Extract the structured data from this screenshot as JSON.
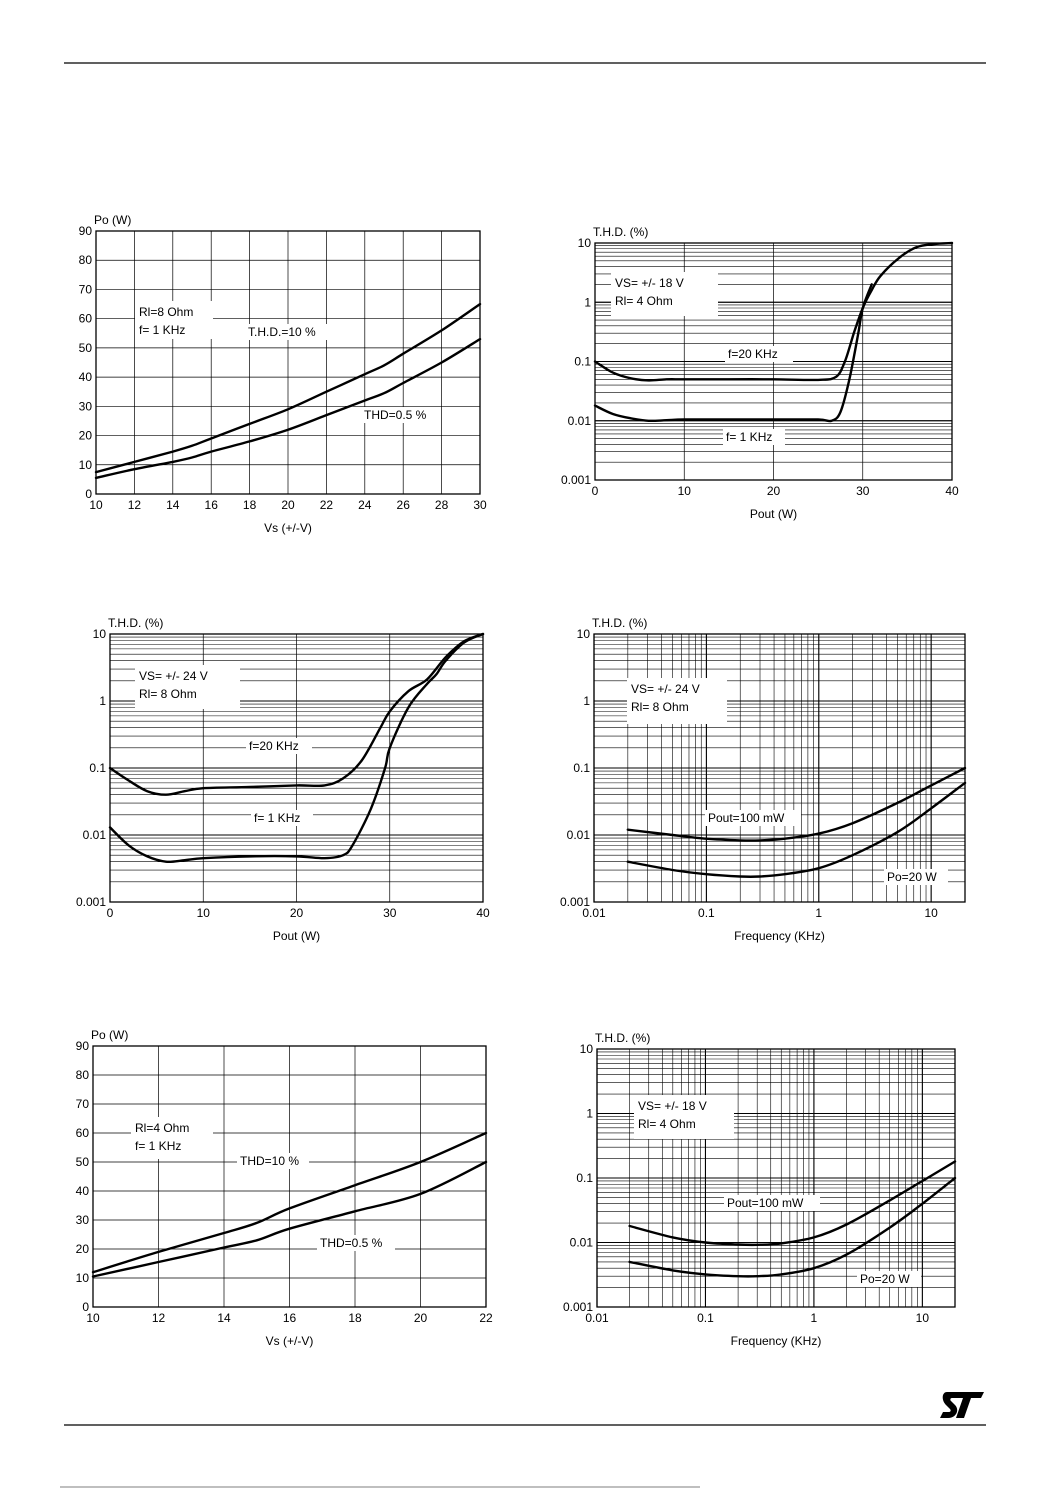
{
  "logo": {
    "text": "ST",
    "icon": "st-logo-icon"
  },
  "colors": {
    "ink": "#000000",
    "paper": "#ffffff"
  },
  "chart_data": [
    {
      "type": "line",
      "title": "",
      "ylabel": "Po (W)",
      "xlabel": "Vs (+/-V)",
      "xscale": "linear",
      "yscale": "linear",
      "xlim": [
        10,
        30
      ],
      "ylim": [
        0,
        90
      ],
      "xticks": [
        10,
        12,
        14,
        16,
        18,
        20,
        22,
        24,
        26,
        28,
        30
      ],
      "yticks": [
        0,
        10,
        20,
        30,
        40,
        50,
        60,
        70,
        80,
        90
      ],
      "grid": true,
      "annotations": [
        "Rl=8 Ohm",
        "f= 1 KHz"
      ],
      "series": [
        {
          "name": "T.H.D.=10 %",
          "x": [
            10,
            12,
            14,
            15,
            16,
            18,
            20,
            22,
            24,
            25,
            26,
            28,
            30
          ],
          "y": [
            7.5,
            11,
            14.5,
            16.5,
            19,
            24,
            29,
            35,
            41,
            44,
            48,
            56,
            65
          ]
        },
        {
          "name": "THD=0.5 %",
          "x": [
            10,
            12,
            14,
            15,
            16,
            18,
            20,
            22,
            24,
            25,
            26,
            28,
            30
          ],
          "y": [
            5.5,
            8.5,
            11,
            12.5,
            14.5,
            18,
            22,
            27,
            32,
            34.5,
            38,
            45,
            53
          ]
        }
      ]
    },
    {
      "type": "line",
      "title": "",
      "ylabel": "T.H.D.  (%)",
      "xlabel": "Pout  (W)",
      "xscale": "linear",
      "yscale": "log",
      "xlim": [
        0,
        40
      ],
      "ylim": [
        0.001,
        10
      ],
      "xticks": [
        0,
        10,
        20,
        30,
        40
      ],
      "yticks": [
        0.001,
        0.01,
        0.1,
        1,
        10
      ],
      "ytick_labels": [
        "0.001",
        "0.01",
        "0.1",
        "1",
        "10"
      ],
      "grid": true,
      "annotations": [
        "VS=  +/- 18 V",
        "Rl=  4 Ohm"
      ],
      "series": [
        {
          "name": "f=20 KHz",
          "x": [
            0,
            2,
            4,
            6,
            8,
            10,
            15,
            20,
            25,
            27,
            28,
            29,
            30,
            31,
            32,
            34,
            36,
            38,
            40
          ],
          "y": [
            0.1,
            0.065,
            0.052,
            0.048,
            0.05,
            0.05,
            0.05,
            0.05,
            0.049,
            0.055,
            0.1,
            0.3,
            0.8,
            1.6,
            2.8,
            5.5,
            8.5,
            9.6,
            10
          ]
        },
        {
          "name": "f= 1 KHz",
          "x": [
            0,
            2,
            4,
            6,
            8,
            10,
            15,
            20,
            25,
            26.5,
            27.5,
            28.5,
            29.5,
            30,
            31
          ],
          "y": [
            0.018,
            0.013,
            0.011,
            0.01,
            0.0102,
            0.0105,
            0.0105,
            0.0105,
            0.0105,
            0.01,
            0.014,
            0.05,
            0.3,
            0.8,
            2
          ]
        }
      ]
    },
    {
      "type": "line",
      "title": "",
      "ylabel": "T.H.D.  (%)",
      "xlabel": "Pout  (W)",
      "xscale": "linear",
      "yscale": "log",
      "xlim": [
        0,
        40
      ],
      "ylim": [
        0.001,
        10
      ],
      "xticks": [
        0,
        10,
        20,
        30,
        40
      ],
      "yticks": [
        0.001,
        0.01,
        0.1,
        1,
        10
      ],
      "ytick_labels": [
        "0.001",
        "0.01",
        "0.1",
        "1",
        "10"
      ],
      "grid": true,
      "annotations": [
        "VS=  +/- 24 V",
        "Rl=  8 Ohm"
      ],
      "series": [
        {
          "name": "f=20 KHz",
          "x": [
            0,
            2,
            4,
            6,
            8,
            10,
            15,
            20,
            23,
            25,
            27,
            29,
            30,
            32,
            34,
            36,
            38,
            40
          ],
          "y": [
            0.1,
            0.065,
            0.045,
            0.04,
            0.045,
            0.05,
            0.052,
            0.055,
            0.055,
            0.07,
            0.13,
            0.4,
            0.7,
            1.4,
            2.1,
            4.5,
            7.8,
            10
          ]
        },
        {
          "name": "f= 1 KHz",
          "x": [
            0,
            2,
            4,
            6,
            8,
            10,
            15,
            20,
            23,
            25,
            26,
            28,
            29.5,
            30,
            32,
            34,
            35,
            36,
            38,
            40
          ],
          "y": [
            0.013,
            0.007,
            0.0048,
            0.004,
            0.0042,
            0.0045,
            0.0048,
            0.0048,
            0.0045,
            0.005,
            0.007,
            0.025,
            0.1,
            0.2,
            0.8,
            1.8,
            2.5,
            4,
            7.5,
            10
          ]
        }
      ]
    },
    {
      "type": "line",
      "title": "",
      "ylabel": "T.H.D.  (%)",
      "xlabel": "Frequency  (KHz)",
      "xscale": "log",
      "yscale": "log",
      "xlim": [
        0.01,
        20
      ],
      "ylim": [
        0.001,
        10
      ],
      "xticks": [
        0.01,
        0.1,
        1,
        10
      ],
      "xtick_labels": [
        "0.01",
        "0.1",
        "1",
        "10"
      ],
      "yticks": [
        0.001,
        0.01,
        0.1,
        1,
        10
      ],
      "ytick_labels": [
        "0.001",
        "0.01",
        "0.1",
        "1",
        "10"
      ],
      "grid": true,
      "annotations": [
        "VS=  +/- 24 V",
        "Rl=  8 Ohm"
      ],
      "series": [
        {
          "name": "Pout=100 mW",
          "x": [
            0.02,
            0.05,
            0.1,
            0.2,
            0.3,
            0.5,
            1,
            2,
            5,
            10,
            20
          ],
          "y": [
            0.012,
            0.01,
            0.0088,
            0.0083,
            0.0083,
            0.0088,
            0.0105,
            0.015,
            0.03,
            0.055,
            0.1
          ]
        },
        {
          "name": "Po=20 W",
          "x": [
            0.02,
            0.05,
            0.1,
            0.2,
            0.3,
            0.5,
            1,
            2,
            5,
            10,
            20
          ],
          "y": [
            0.004,
            0.003,
            0.0026,
            0.0024,
            0.0024,
            0.0026,
            0.0032,
            0.005,
            0.011,
            0.025,
            0.06
          ]
        }
      ]
    },
    {
      "type": "line",
      "title": "",
      "ylabel": "Po (W)",
      "xlabel": "Vs (+/-V)",
      "xscale": "linear",
      "yscale": "linear",
      "xlim": [
        10,
        22
      ],
      "ylim": [
        0,
        90
      ],
      "xticks": [
        10,
        12,
        14,
        16,
        18,
        20,
        22
      ],
      "yticks": [
        0,
        10,
        20,
        30,
        40,
        50,
        60,
        70,
        80,
        90
      ],
      "grid": true,
      "annotations": [
        "Rl=4 Ohm",
        "f= 1 KHz"
      ],
      "series": [
        {
          "name": "THD=10 %",
          "x": [
            10,
            12,
            14,
            15,
            16,
            18,
            20,
            22
          ],
          "y": [
            12,
            19,
            25.5,
            29,
            34,
            42,
            50,
            60
          ]
        },
        {
          "name": "THD=0.5 %",
          "x": [
            10,
            12,
            14,
            15,
            16,
            18,
            20,
            22
          ],
          "y": [
            10.5,
            15.5,
            20.5,
            23,
            27,
            33,
            39,
            50
          ]
        }
      ]
    },
    {
      "type": "line",
      "title": "",
      "ylabel": "T.H.D.  (%)",
      "xlabel": "Frequency  (KHz)",
      "xscale": "log",
      "yscale": "log",
      "xlim": [
        0.01,
        20
      ],
      "ylim": [
        0.001,
        10
      ],
      "xticks": [
        0.01,
        0.1,
        1,
        10
      ],
      "xtick_labels": [
        "0.01",
        "0.1",
        "1",
        "10"
      ],
      "yticks": [
        0.001,
        0.01,
        0.1,
        1,
        10
      ],
      "ytick_labels": [
        "0.001",
        "0.01",
        "0.1",
        "1",
        "10"
      ],
      "grid": true,
      "annotations": [
        "VS=  +/- 18 V",
        "Rl=  4 Ohm"
      ],
      "series": [
        {
          "name": "Pout=100 mW",
          "x": [
            0.02,
            0.05,
            0.1,
            0.2,
            0.3,
            0.5,
            1,
            2,
            5,
            10,
            20
          ],
          "y": [
            0.018,
            0.012,
            0.01,
            0.0093,
            0.0092,
            0.0097,
            0.012,
            0.019,
            0.045,
            0.09,
            0.18
          ]
        },
        {
          "name": "Po=20 W",
          "x": [
            0.02,
            0.05,
            0.1,
            0.2,
            0.3,
            0.5,
            1,
            2,
            5,
            10,
            20
          ],
          "y": [
            0.005,
            0.0037,
            0.0032,
            0.003,
            0.003,
            0.0032,
            0.004,
            0.0065,
            0.017,
            0.04,
            0.1
          ]
        }
      ]
    }
  ]
}
